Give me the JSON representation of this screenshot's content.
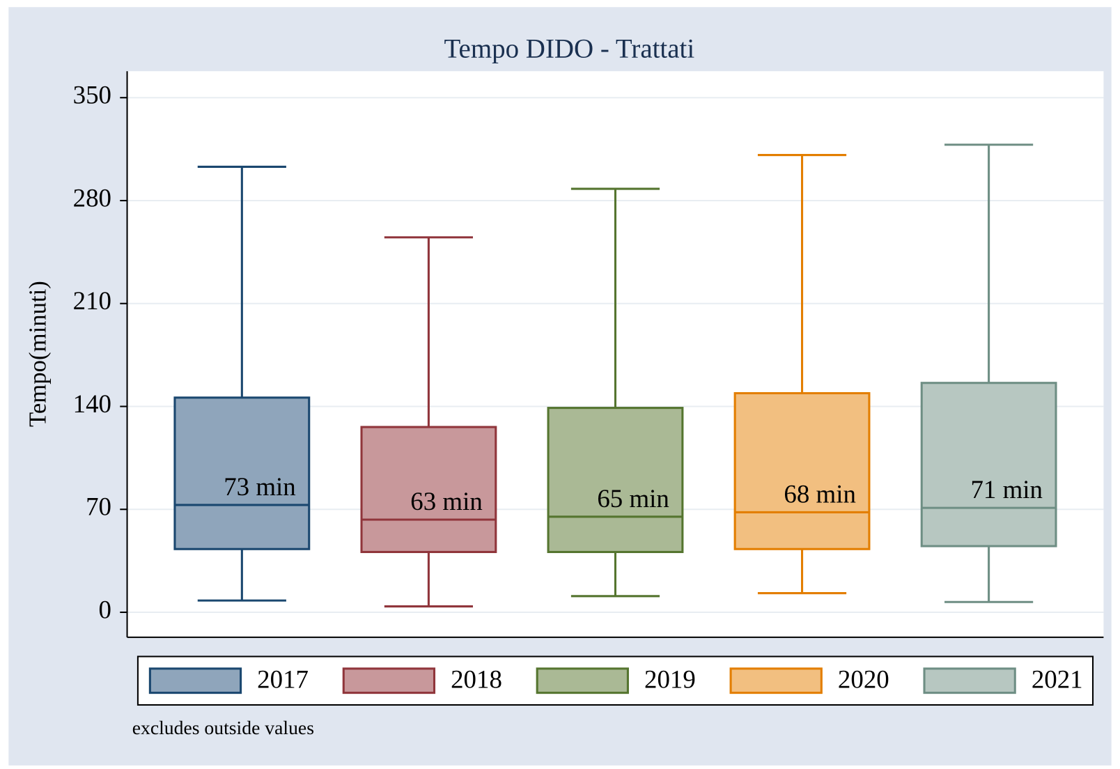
{
  "chart_data": {
    "type": "box",
    "title": "Tempo DIDO - Trattati",
    "y_label": "Tempo(minuti)",
    "note": "excludes outside values",
    "ylim": [
      -17,
      368
    ],
    "yticks": [
      0,
      70,
      140,
      210,
      280,
      350
    ],
    "grid": true,
    "legend_position": "bottom",
    "series": [
      {
        "name": "2017",
        "color": "#1a476f",
        "fill": "#8fa5bb",
        "whisker_low": 8,
        "q1": 43,
        "median": 73,
        "q3": 146,
        "whisker_high": 303,
        "median_label": "73 min"
      },
      {
        "name": "2018",
        "color": "#90353b",
        "fill": "#c8989b",
        "whisker_low": 4,
        "q1": 41,
        "median": 63,
        "q3": 126,
        "whisker_high": 255,
        "median_label": "63 min"
      },
      {
        "name": "2019",
        "color": "#55752f",
        "fill": "#aab995",
        "whisker_low": 11,
        "q1": 41,
        "median": 65,
        "q3": 139,
        "whisker_high": 288,
        "median_label": "65 min"
      },
      {
        "name": "2020",
        "color": "#e37e00",
        "fill": "#f2bf80",
        "whisker_low": 13,
        "q1": 43,
        "median": 68,
        "q3": 149,
        "whisker_high": 311,
        "median_label": "68 min"
      },
      {
        "name": "2021",
        "color": "#6e8e84",
        "fill": "#b7c7c1",
        "whisker_low": 7,
        "q1": 45,
        "median": 71,
        "q3": 156,
        "whisker_high": 318,
        "median_label": "71 min"
      }
    ]
  }
}
